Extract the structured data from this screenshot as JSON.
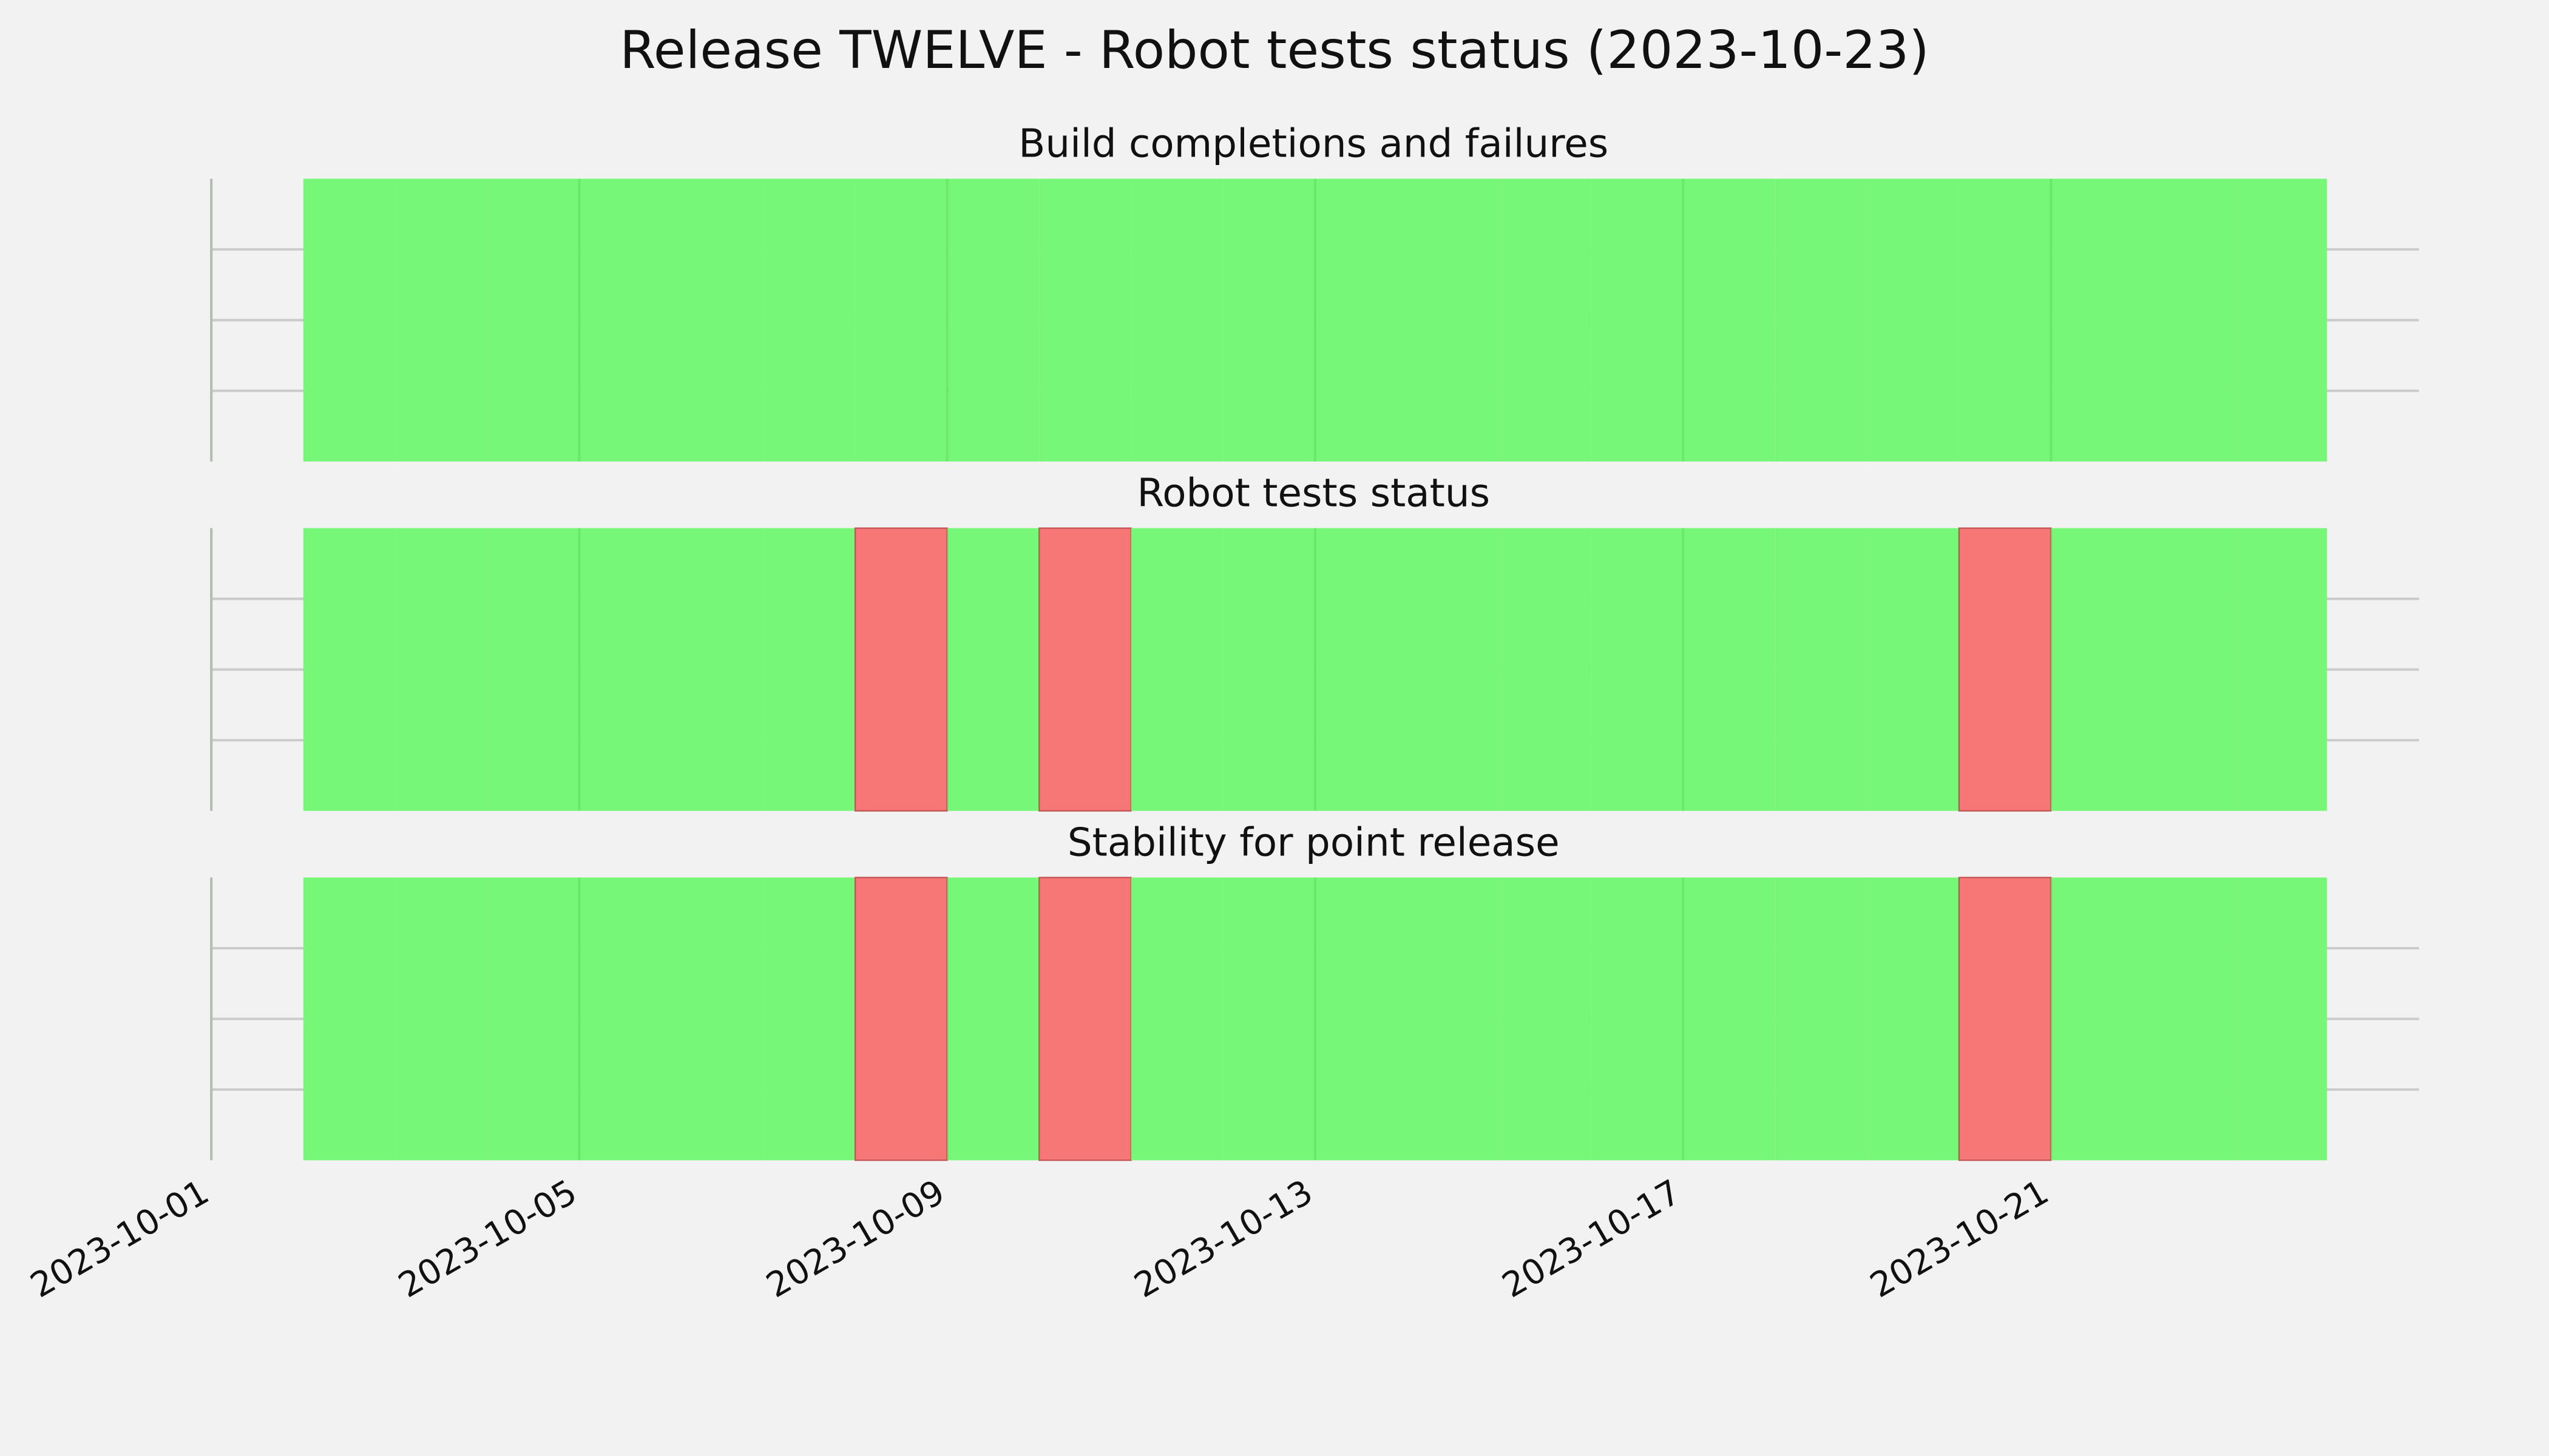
{
  "title": "Release TWELVE - Robot tests status (2023-10-23)",
  "chart_data": [
    {
      "type": "timeline",
      "title": "Build completions and failures",
      "x": [
        "2023-10-02",
        "2023-10-03",
        "2023-10-04",
        "2023-10-05",
        "2023-10-06",
        "2023-10-07",
        "2023-10-08",
        "2023-10-09",
        "2023-10-10",
        "2023-10-11",
        "2023-10-12",
        "2023-10-13",
        "2023-10-14",
        "2023-10-15",
        "2023-10-16",
        "2023-10-17",
        "2023-10-18",
        "2023-10-19",
        "2023-10-20",
        "2023-10-21",
        "2023-10-22",
        "2023-10-23"
      ],
      "values": [
        1,
        1,
        1,
        1,
        1,
        1,
        1,
        1,
        1,
        1,
        1,
        1,
        1,
        1,
        1,
        1,
        1,
        1,
        1,
        1,
        1,
        1
      ],
      "colors": [
        "#f77777",
        "#77f777"
      ],
      "xlim": [
        "2023-10-01",
        "2023-10-25"
      ],
      "xticks": [
        "2023-10-01",
        "2023-10-05",
        "2023-10-09",
        "2023-10-13",
        "2023-10-17",
        "2023-10-21"
      ],
      "ylim": [
        0,
        1
      ],
      "yticks": [
        0.25,
        0.5,
        0.75
      ],
      "grid": true,
      "xtick_labels": false
    },
    {
      "type": "timeline",
      "title": "Robot tests status",
      "x": [
        "2023-10-02",
        "2023-10-03",
        "2023-10-04",
        "2023-10-05",
        "2023-10-06",
        "2023-10-07",
        "2023-10-08",
        "2023-10-09",
        "2023-10-10",
        "2023-10-11",
        "2023-10-12",
        "2023-10-13",
        "2023-10-14",
        "2023-10-15",
        "2023-10-16",
        "2023-10-17",
        "2023-10-18",
        "2023-10-19",
        "2023-10-20",
        "2023-10-21",
        "2023-10-22",
        "2023-10-23"
      ],
      "values": [
        1,
        1,
        1,
        1,
        1,
        1,
        0,
        1,
        0,
        1,
        1,
        1,
        1,
        1,
        1,
        1,
        1,
        1,
        0,
        1,
        1,
        1
      ],
      "colors": [
        "#f77777",
        "#77f777"
      ],
      "xlim": [
        "2023-10-01",
        "2023-10-25"
      ],
      "xticks": [
        "2023-10-01",
        "2023-10-05",
        "2023-10-09",
        "2023-10-13",
        "2023-10-17",
        "2023-10-21"
      ],
      "ylim": [
        0,
        1
      ],
      "yticks": [
        0.25,
        0.5,
        0.75
      ],
      "grid": true,
      "xtick_labels": false
    },
    {
      "type": "timeline",
      "title": "Stability for point release",
      "x": [
        "2023-10-02",
        "2023-10-03",
        "2023-10-04",
        "2023-10-05",
        "2023-10-06",
        "2023-10-07",
        "2023-10-08",
        "2023-10-09",
        "2023-10-10",
        "2023-10-11",
        "2023-10-12",
        "2023-10-13",
        "2023-10-14",
        "2023-10-15",
        "2023-10-16",
        "2023-10-17",
        "2023-10-18",
        "2023-10-19",
        "2023-10-20",
        "2023-10-21",
        "2023-10-22",
        "2023-10-23"
      ],
      "values": [
        1,
        1,
        1,
        1,
        1,
        1,
        0,
        1,
        0,
        1,
        1,
        1,
        1,
        1,
        1,
        1,
        1,
        1,
        0,
        1,
        1,
        1
      ],
      "colors": [
        "#f77777",
        "#77f777"
      ],
      "xlim": [
        "2023-10-01",
        "2023-10-25"
      ],
      "xticks": [
        "2023-10-01",
        "2023-10-05",
        "2023-10-09",
        "2023-10-13",
        "2023-10-17",
        "2023-10-21"
      ],
      "ylim": [
        0,
        1
      ],
      "yticks": [
        0.25,
        0.5,
        0.75
      ],
      "grid": true,
      "xtick_labels": true
    }
  ]
}
